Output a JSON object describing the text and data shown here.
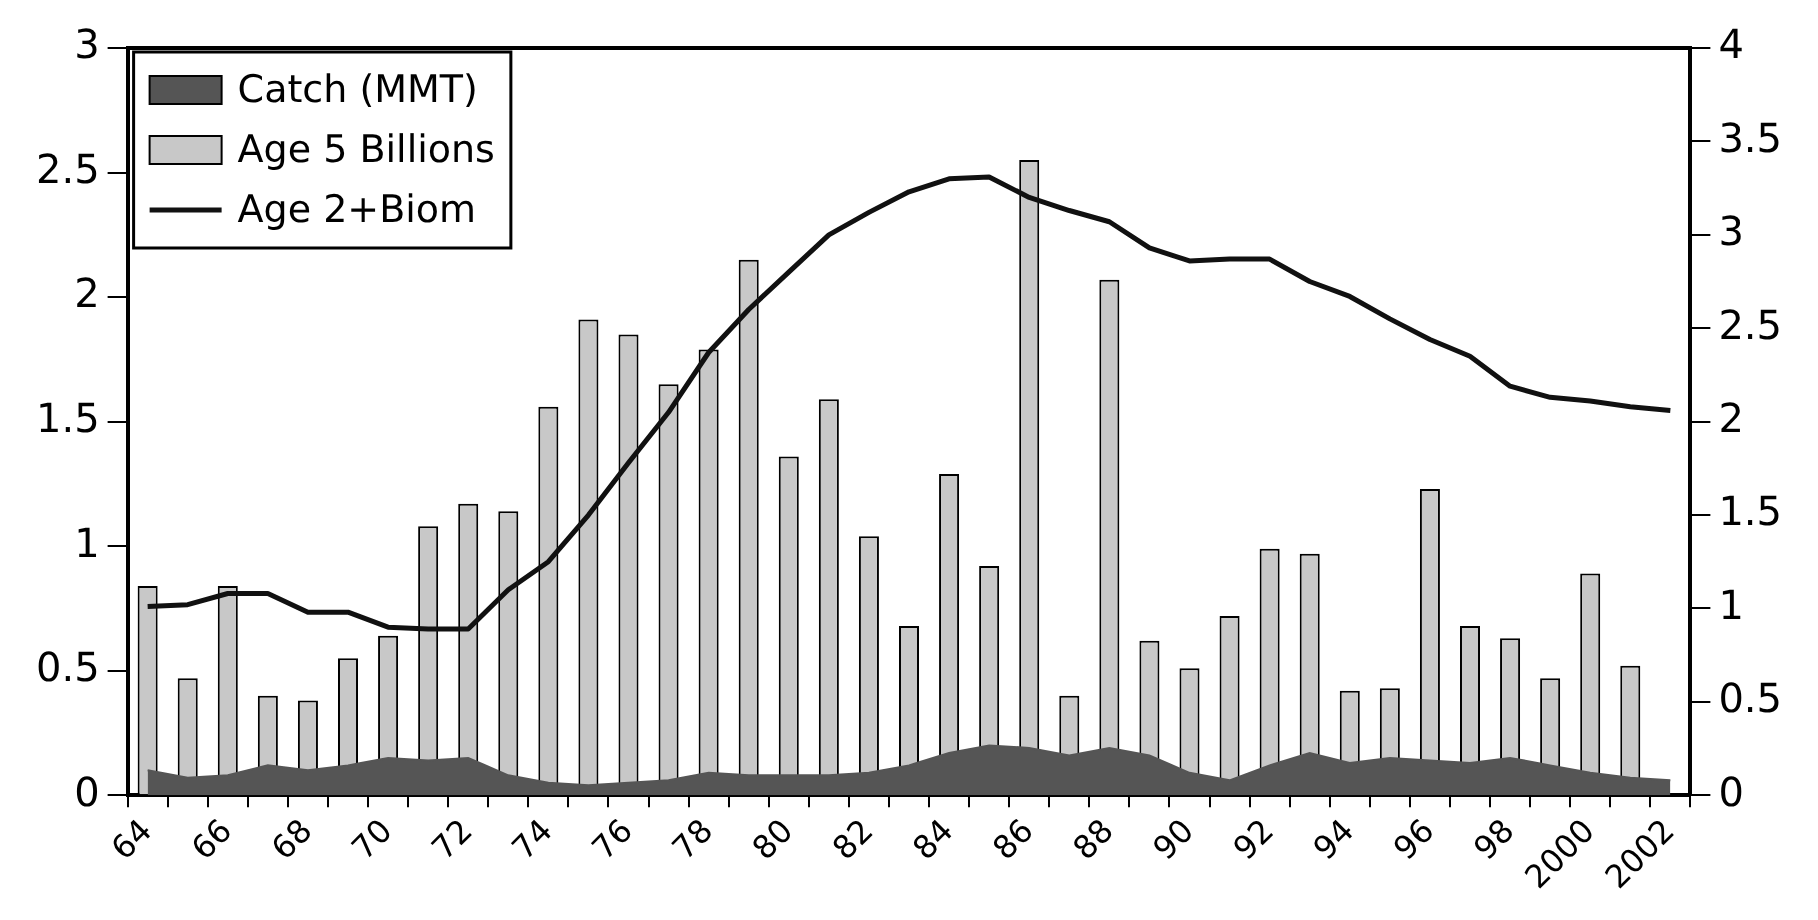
{
  "chart_data": {
    "type": "bar",
    "categories": [
      "64",
      null,
      "66",
      null,
      "68",
      null,
      "70",
      null,
      "72",
      null,
      "74",
      null,
      "76",
      null,
      "78",
      null,
      "80",
      null,
      "82",
      null,
      "84",
      null,
      "86",
      null,
      "88",
      null,
      "90",
      null,
      "92",
      null,
      "94",
      null,
      "96",
      null,
      "98",
      null,
      "2000",
      null,
      "2002"
    ],
    "series": [
      {
        "name": "Catch (MMT)",
        "type": "area",
        "color": "#555555",
        "values": [
          0.1,
          0.07,
          0.08,
          0.12,
          0.1,
          0.12,
          0.15,
          0.14,
          0.15,
          0.08,
          0.05,
          0.04,
          0.05,
          0.06,
          0.09,
          0.08,
          0.08,
          0.08,
          0.09,
          0.12,
          0.17,
          0.2,
          0.19,
          0.16,
          0.19,
          0.16,
          0.09,
          0.06,
          0.12,
          0.17,
          0.13,
          0.15,
          0.14,
          0.13,
          0.15,
          0.12,
          0.09,
          0.07,
          0.06
        ]
      },
      {
        "name": "Age 5 Billions",
        "type": "bar",
        "color": "#c8c8c8",
        "values": [
          0.84,
          0.47,
          0.84,
          0.4,
          0.38,
          0.55,
          0.64,
          1.08,
          1.17,
          1.14,
          1.56,
          1.91,
          1.85,
          1.65,
          1.79,
          2.15,
          1.36,
          1.59,
          1.04,
          0.68,
          1.29,
          0.92,
          2.55,
          0.4,
          2.07,
          0.62,
          0.51,
          0.72,
          0.99,
          0.97,
          0.42,
          0.43,
          1.23,
          0.68,
          0.63,
          0.47,
          0.89,
          0.52,
          null
        ]
      },
      {
        "name": "Age 2+Biom",
        "type": "line",
        "axis": "y2",
        "color": "#111111",
        "values": [
          1.01,
          1.02,
          1.08,
          1.08,
          0.98,
          0.98,
          0.9,
          0.89,
          0.89,
          1.1,
          1.25,
          1.5,
          1.78,
          2.05,
          2.37,
          2.6,
          2.8,
          3.0,
          3.12,
          3.23,
          3.3,
          3.31,
          3.2,
          3.13,
          3.07,
          2.93,
          2.86,
          2.87,
          2.87,
          2.75,
          2.67,
          2.55,
          2.44,
          2.35,
          2.19,
          2.13,
          2.11,
          2.08,
          2.06
        ]
      }
    ],
    "ylim": [
      0,
      3
    ],
    "yticks": [
      0,
      0.5,
      1,
      1.5,
      2,
      2.5,
      3
    ],
    "y2lim": [
      0,
      4
    ],
    "y2ticks": [
      0,
      0.5,
      1,
      1.5,
      2,
      2.5,
      3,
      3.5,
      4
    ],
    "legend": "top left",
    "grid": false
  }
}
